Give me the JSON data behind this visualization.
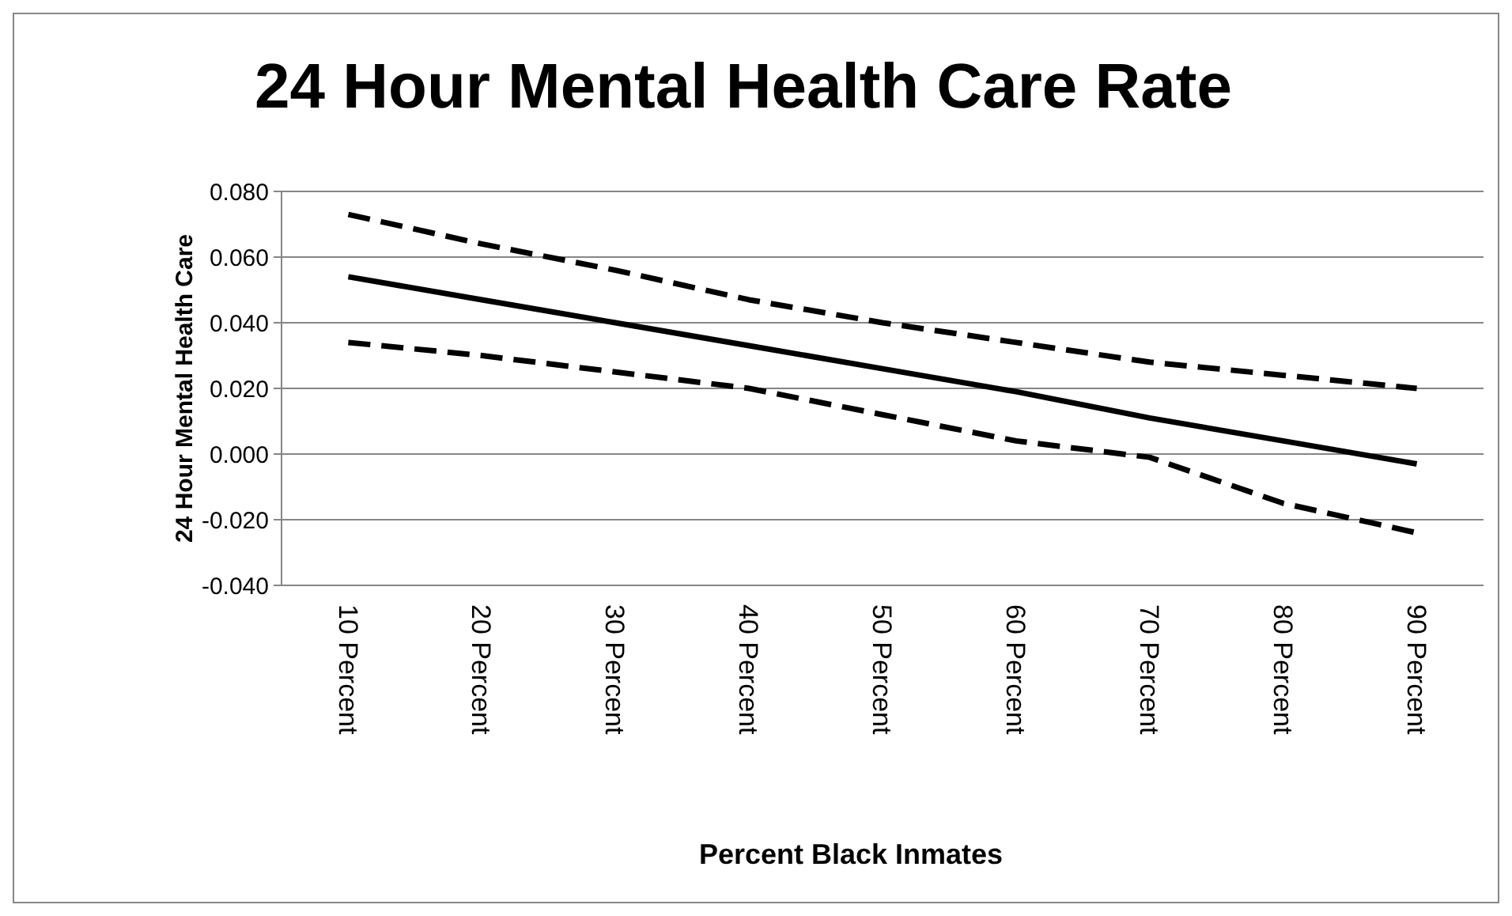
{
  "chart_data": {
    "type": "line",
    "title": "24 Hour Mental Health Care Rate",
    "xlabel": "Percent Black Inmates",
    "ylabel": "24 Hour Mental Health Care",
    "categories": [
      "10 Percent",
      "20 Percent",
      "30 Percent",
      "40 Percent",
      "50 Percent",
      "60 Percent",
      "70 Percent",
      "80 Percent",
      "90 Percent"
    ],
    "series": [
      {
        "color": "#000000",
        "line_style": "dashed",
        "values": [
          0.073,
          0.064,
          0.056,
          0.047,
          0.04,
          0.034,
          0.028,
          0.024,
          0.02
        ]
      },
      {
        "color": "#000000",
        "line_style": "solid",
        "values": [
          0.054,
          0.047,
          0.04,
          0.033,
          0.026,
          0.019,
          0.011,
          0.004,
          -0.003
        ]
      },
      {
        "color": "#000000",
        "line_style": "dashed",
        "values": [
          0.034,
          0.03,
          0.025,
          0.02,
          0.012,
          0.004,
          -0.001,
          -0.015,
          -0.024
        ]
      }
    ],
    "ylim": [
      -0.04,
      0.08
    ],
    "yticks": [
      {
        "value": -0.04,
        "label": "-0.040"
      },
      {
        "value": -0.02,
        "label": "-0.020"
      },
      {
        "value": 0,
        "label": "0.000"
      },
      {
        "value": 0.02,
        "label": "0.020"
      },
      {
        "value": 0.04,
        "label": "0.040"
      },
      {
        "value": 0.06,
        "label": "0.060"
      },
      {
        "value": 0.08,
        "label": "0.080"
      }
    ],
    "grid": "y",
    "marker": "none"
  }
}
